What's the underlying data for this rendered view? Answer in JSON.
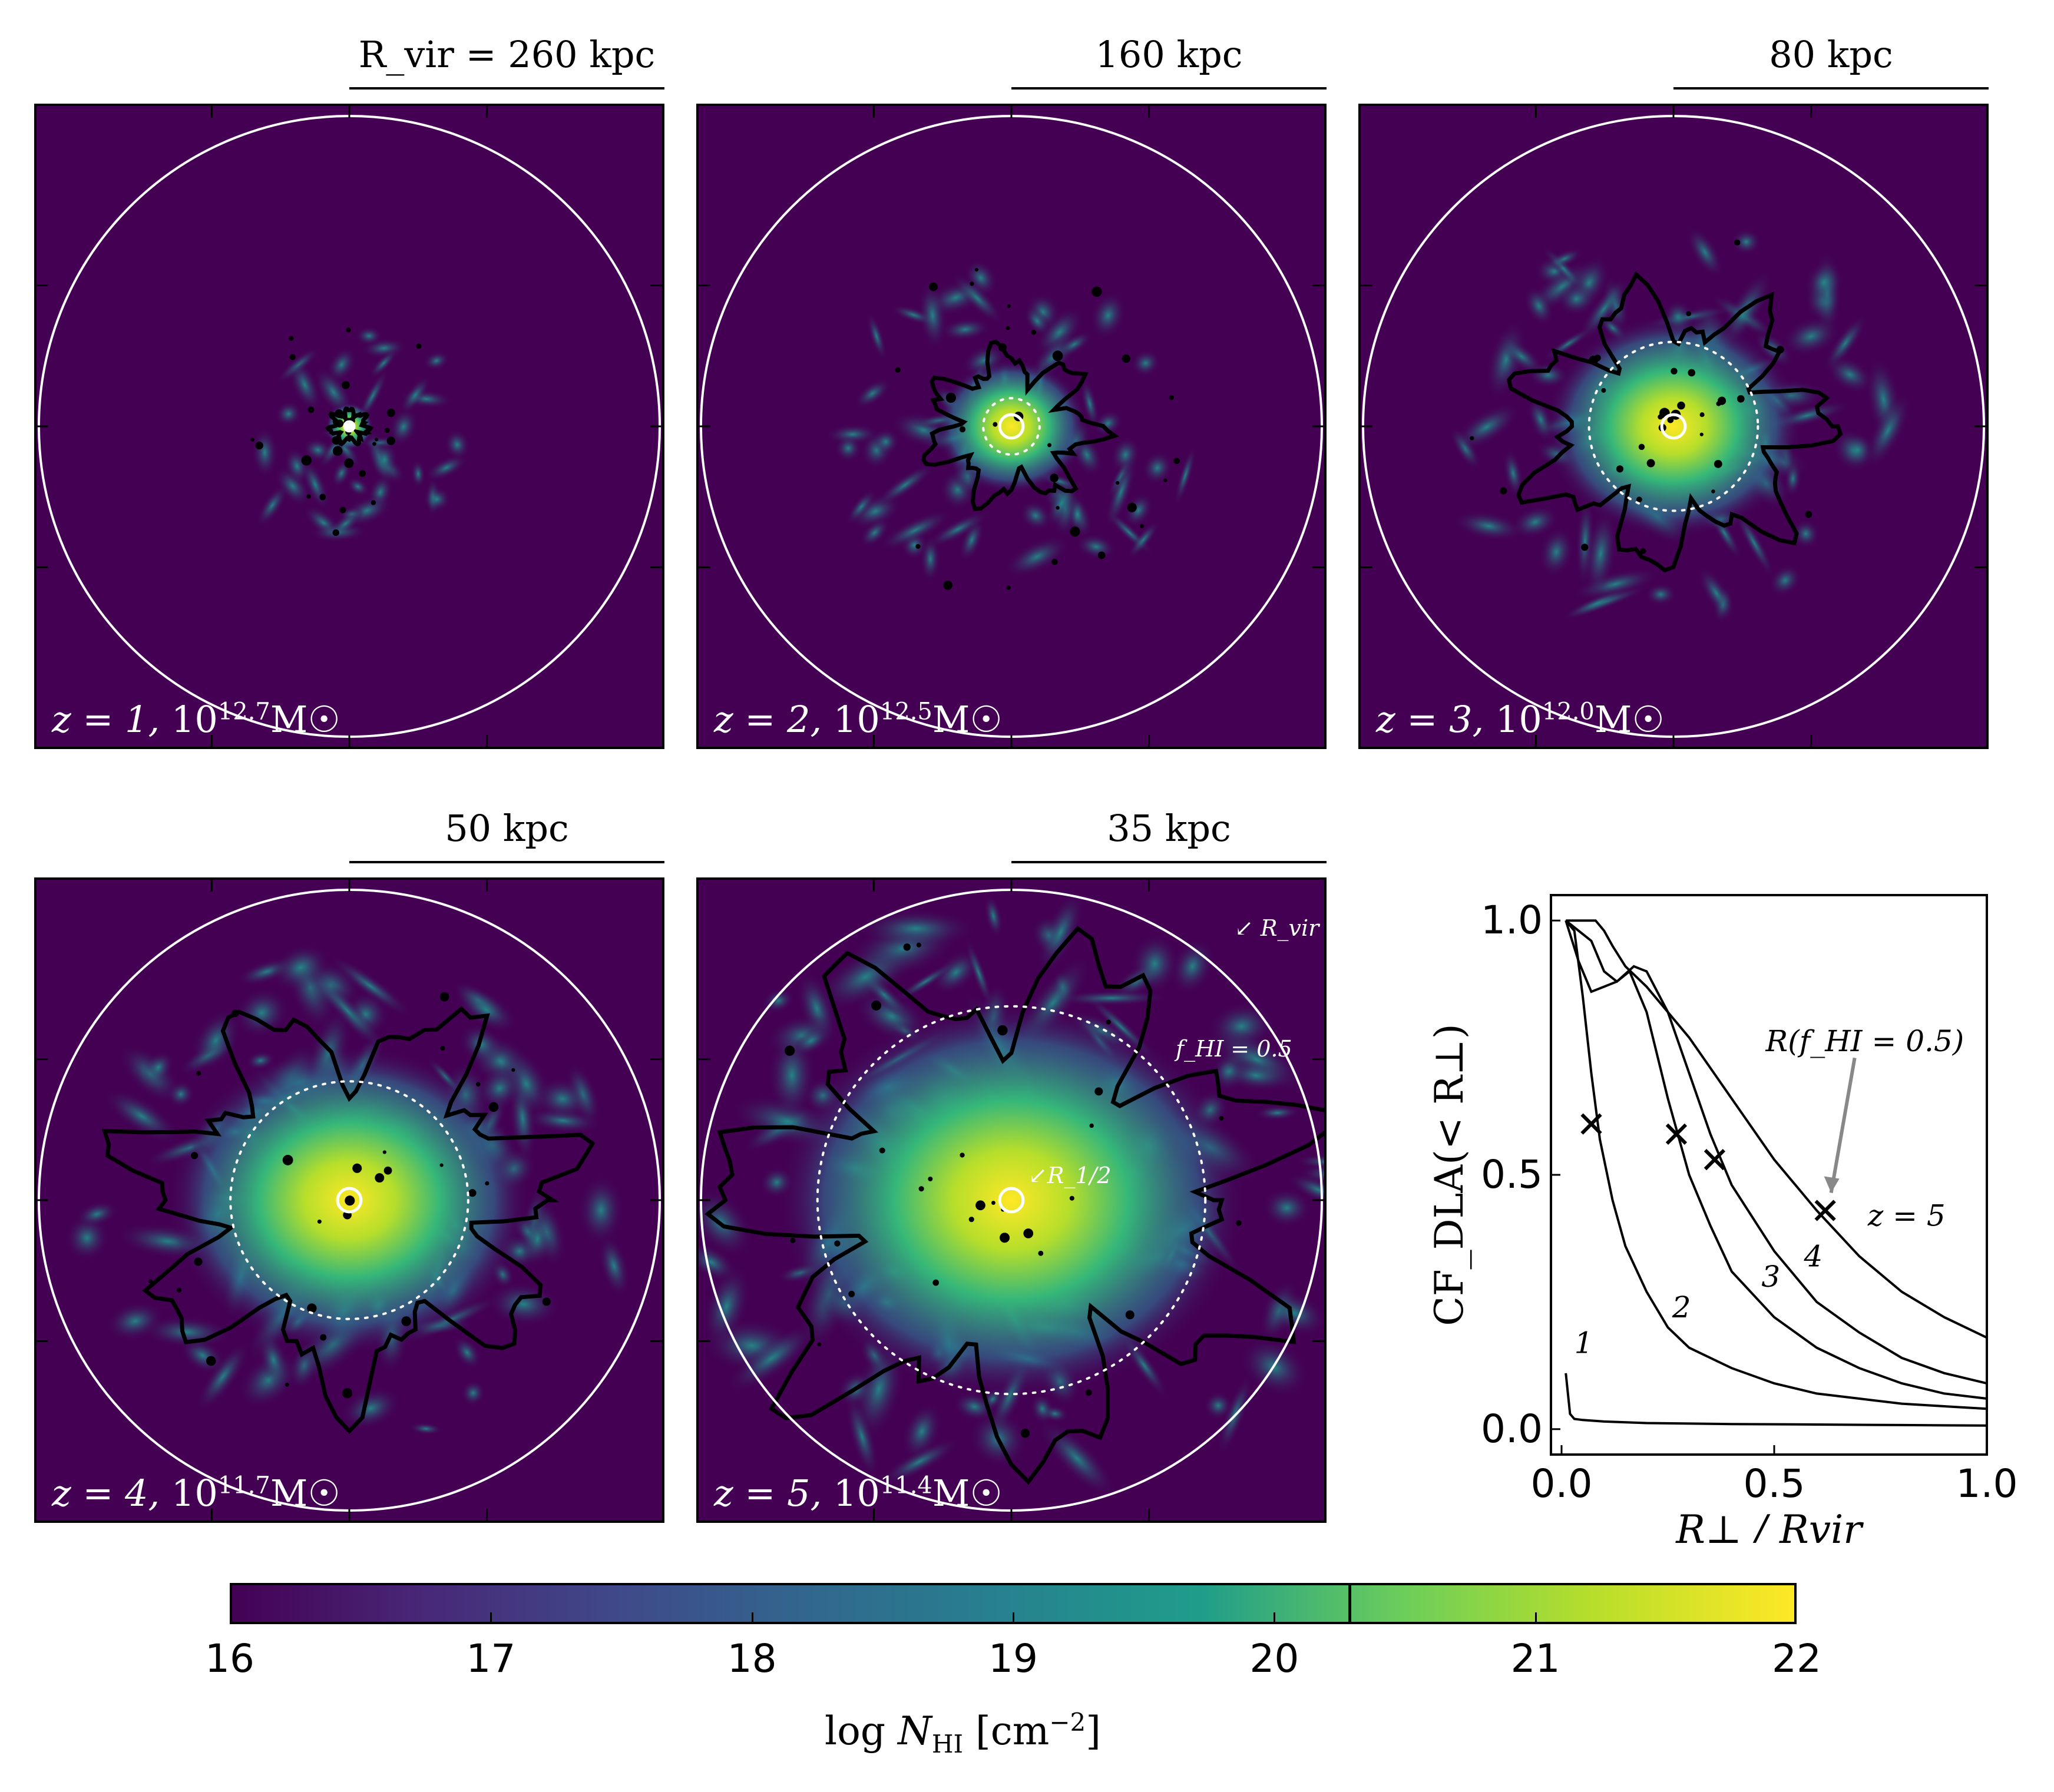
{
  "panels": [
    {
      "label_z": "z = 1,",
      "label_mass": "10",
      "label_exp": "12.7",
      "label_unit": "M☉",
      "scale": "R_vir = 260 kpc"
    },
    {
      "label_z": "z = 2,",
      "label_mass": "10",
      "label_exp": "12.5",
      "label_unit": "M☉",
      "scale": "160 kpc"
    },
    {
      "label_z": "z = 3,",
      "label_mass": "10",
      "label_exp": "12.0",
      "label_unit": "M☉",
      "scale": "80 kpc"
    },
    {
      "label_z": "z = 4,",
      "label_mass": "10",
      "label_exp": "11.7",
      "label_unit": "M☉",
      "scale": "50 kpc"
    },
    {
      "label_z": "z = 5,",
      "label_mass": "10",
      "label_exp": "11.4",
      "label_unit": "M☉",
      "scale": "35 kpc"
    }
  ],
  "annotations": {
    "rvir": "R_vir",
    "fhi": "f_HI = 0.5",
    "rhalf": "R_1/2"
  },
  "colorbar": {
    "label": "log N_HI [cm^-2]",
    "ticks": [
      "16",
      "17",
      "18",
      "19",
      "20",
      "21",
      "22"
    ],
    "min": 16,
    "max": 22,
    "marker": 20.3,
    "colors": [
      "#440154",
      "#482777",
      "#3f4a8a",
      "#31678e",
      "#26838f",
      "#1f9d8a",
      "#6cce5a",
      "#b6de2b",
      "#fee825"
    ]
  },
  "chart_data": {
    "type": "line",
    "title": "",
    "xlabel": "R⊥ / Rvir",
    "ylabel": "CF_DLA(< R⊥)",
    "xlim": [
      0,
      1
    ],
    "ylim": [
      -0.05,
      1.05
    ],
    "xticks": [
      "0.0",
      "0.5",
      "1.0"
    ],
    "yticks": [
      "0.0",
      "0.5",
      "1.0"
    ],
    "series": [
      {
        "name": "1",
        "x": [
          0.01,
          0.02,
          0.03,
          0.05,
          0.1,
          0.2,
          0.4,
          0.6,
          0.8,
          1.0
        ],
        "y": [
          0.11,
          0.03,
          0.02,
          0.018,
          0.015,
          0.012,
          0.01,
          0.009,
          0.008,
          0.007
        ]
      },
      {
        "name": "2",
        "x": [
          0.01,
          0.03,
          0.05,
          0.07,
          0.09,
          0.12,
          0.15,
          0.2,
          0.25,
          0.3,
          0.4,
          0.5,
          0.6,
          0.7,
          0.8,
          0.9,
          1.0
        ],
        "y": [
          1.0,
          0.98,
          0.85,
          0.7,
          0.57,
          0.45,
          0.36,
          0.27,
          0.2,
          0.16,
          0.12,
          0.09,
          0.07,
          0.06,
          0.05,
          0.045,
          0.04
        ]
      },
      {
        "name": "3",
        "x": [
          0.01,
          0.04,
          0.07,
          0.1,
          0.13,
          0.16,
          0.2,
          0.25,
          0.3,
          0.35,
          0.4,
          0.5,
          0.6,
          0.7,
          0.8,
          0.9,
          1.0
        ],
        "y": [
          1.0,
          0.98,
          0.96,
          0.9,
          0.88,
          0.9,
          0.82,
          0.65,
          0.5,
          0.4,
          0.31,
          0.22,
          0.16,
          0.12,
          0.09,
          0.07,
          0.06
        ]
      },
      {
        "name": "4",
        "x": [
          0.01,
          0.04,
          0.07,
          0.1,
          0.13,
          0.17,
          0.2,
          0.25,
          0.3,
          0.35,
          0.4,
          0.5,
          0.6,
          0.7,
          0.8,
          0.9,
          1.0
        ],
        "y": [
          1.0,
          0.92,
          0.86,
          0.87,
          0.88,
          0.91,
          0.9,
          0.82,
          0.7,
          0.58,
          0.48,
          0.35,
          0.25,
          0.19,
          0.14,
          0.11,
          0.09
        ]
      },
      {
        "name": "z = 5",
        "x": [
          0.01,
          0.05,
          0.08,
          0.1,
          0.12,
          0.15,
          0.2,
          0.3,
          0.4,
          0.5,
          0.6,
          0.7,
          0.8,
          0.9,
          1.0
        ],
        "y": [
          1.0,
          1.0,
          1.0,
          0.98,
          0.95,
          0.91,
          0.87,
          0.77,
          0.65,
          0.53,
          0.43,
          0.34,
          0.27,
          0.22,
          0.18
        ]
      }
    ],
    "crosses": [
      {
        "x": 0.07,
        "y": 0.6
      },
      {
        "x": 0.27,
        "y": 0.58
      },
      {
        "x": 0.36,
        "y": 0.53
      },
      {
        "x": 0.62,
        "y": 0.43
      }
    ],
    "curve_labels": [
      {
        "text": "1",
        "x": 0.03,
        "y": 0.15
      },
      {
        "text": "2",
        "x": 0.26,
        "y": 0.22
      },
      {
        "text": "3",
        "x": 0.47,
        "y": 0.28
      },
      {
        "text": "4",
        "x": 0.57,
        "y": 0.32
      },
      {
        "text": "z = 5",
        "x": 0.72,
        "y": 0.4
      }
    ],
    "arrow_label": "R(f_HI = 0.5)"
  }
}
